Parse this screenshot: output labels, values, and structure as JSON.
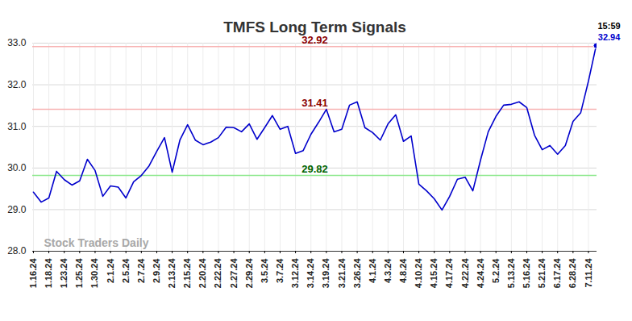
{
  "chart_data": {
    "type": "line",
    "title": "TMFS Long Term Signals",
    "watermark": "Stock Traders Daily",
    "color": "#0000cc",
    "grid": true,
    "categories": [
      "1.16.24",
      null,
      "1.18.24",
      null,
      "1.23.24",
      null,
      "1.25.24",
      null,
      "1.30.24",
      null,
      "2.1.24",
      null,
      "2.5.24",
      null,
      "2.7.24",
      null,
      "2.9.24",
      null,
      "2.13.24",
      null,
      "2.15.24",
      null,
      "2.20.24",
      null,
      "2.22.24",
      null,
      "2.27.24",
      null,
      "2.29.24",
      null,
      "3.5.24",
      null,
      "3.7.24",
      null,
      "3.12.24",
      null,
      "3.14.24",
      null,
      "3.19.24",
      null,
      "3.21.24",
      null,
      "3.26.24",
      null,
      "4.1.24",
      null,
      "4.3.24",
      null,
      "4.8.24",
      null,
      "4.10.24",
      null,
      "4.15.24",
      null,
      "4.17.24",
      null,
      "4.22.24",
      null,
      "4.24.24",
      null,
      "5.2.24",
      null,
      "5.13.24",
      null,
      "5.16.24",
      null,
      "5.21.24",
      null,
      "6.17.24",
      null,
      "6.28.24",
      null,
      "7.11.24",
      null
    ],
    "values": [
      29.42,
      29.18,
      29.28,
      29.92,
      29.72,
      29.59,
      29.69,
      30.21,
      29.94,
      29.32,
      29.57,
      29.54,
      29.28,
      29.67,
      29.82,
      30.05,
      30.4,
      30.73,
      29.9,
      30.67,
      31.04,
      30.67,
      30.56,
      30.62,
      30.73,
      30.98,
      30.97,
      30.87,
      31.06,
      30.69,
      30.97,
      31.26,
      30.93,
      31.0,
      30.35,
      30.42,
      30.81,
      31.1,
      31.41,
      30.87,
      30.93,
      31.51,
      31.59,
      30.97,
      30.85,
      30.67,
      31.06,
      31.28,
      30.64,
      30.77,
      29.61,
      29.45,
      29.26,
      28.99,
      29.32,
      29.73,
      29.78,
      29.45,
      30.19,
      30.87,
      31.24,
      31.51,
      31.53,
      31.59,
      31.45,
      30.79,
      30.44,
      30.54,
      30.33,
      30.54,
      31.12,
      31.33,
      32.09,
      32.94
    ],
    "ylim": [
      28,
      33
    ],
    "yticks": [
      28,
      29,
      30,
      31,
      32,
      33
    ],
    "reference_lines": [
      {
        "value": 32.92,
        "label": "32.92",
        "color": "#f7b3b3",
        "label_color": "#8b0000"
      },
      {
        "value": 31.41,
        "label": "31.41",
        "color": "#f7b3b3",
        "label_color": "#8b0000"
      },
      {
        "value": 29.82,
        "label": "29.82",
        "color": "#8ee88e",
        "label_color": "#006400"
      }
    ],
    "last_point_label": {
      "time": "15:59",
      "value": 32.94
    }
  }
}
